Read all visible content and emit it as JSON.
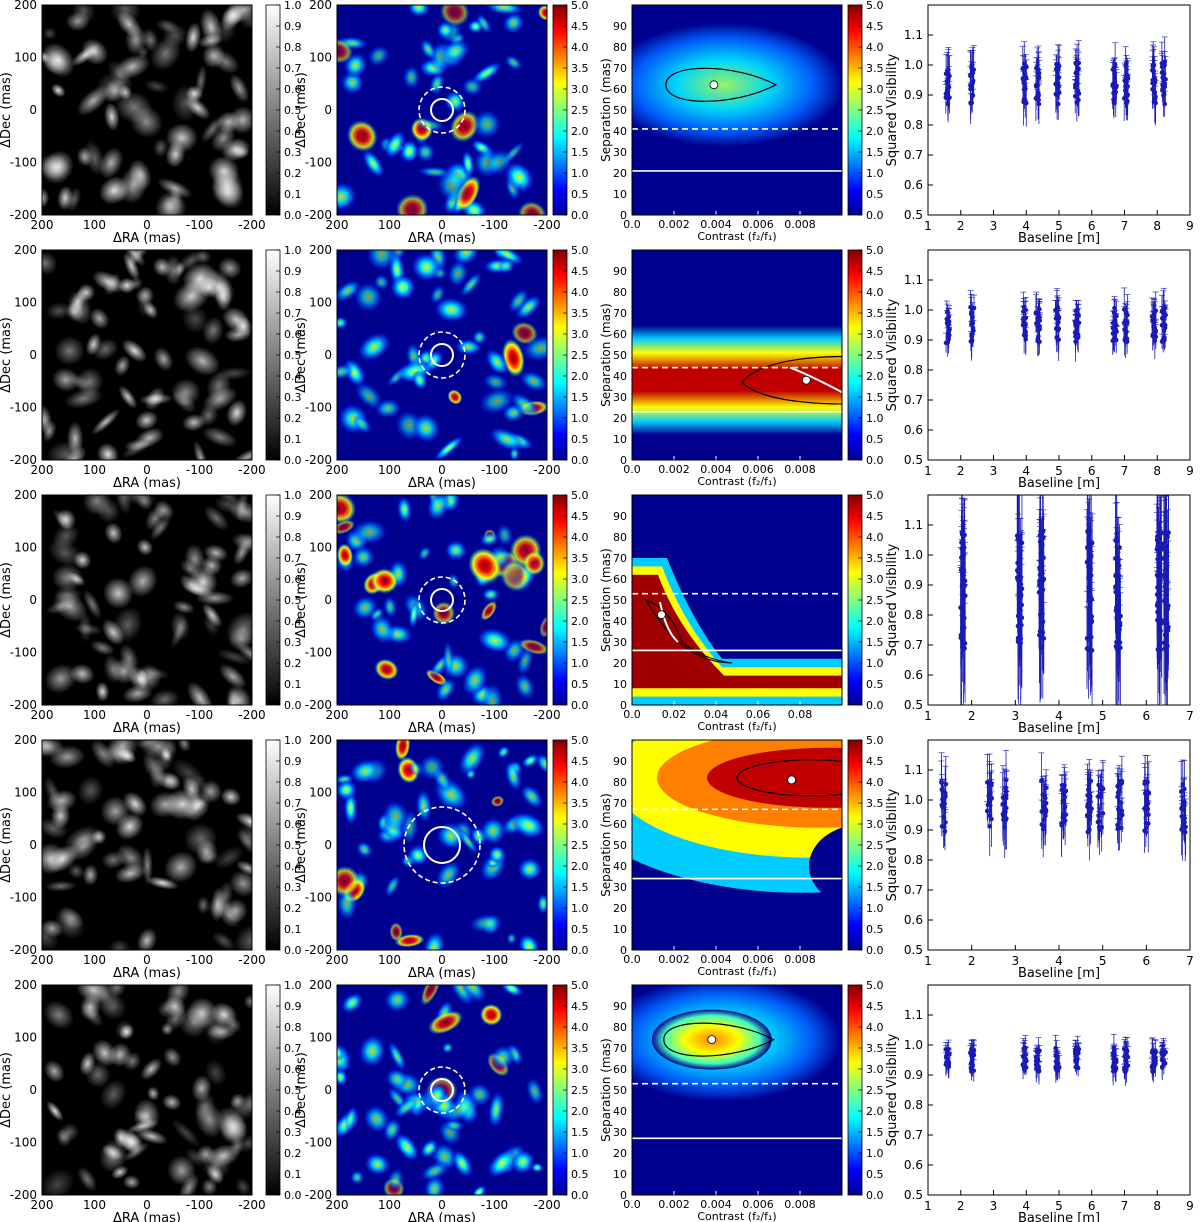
{
  "colors": {
    "viridis_low": "#00008f",
    "hot": "#800000",
    "points": "#1a1ab4",
    "white": "#ffffff",
    "black": "#000000"
  },
  "chart_data": [
    {
      "type": "heatmap",
      "row": 1,
      "panels": [
        {
          "kind": "image-gray",
          "xlabel": "ΔRA (mas)",
          "ylabel": "ΔDec (mas)",
          "xlim": [
            200,
            -200
          ],
          "ylim": [
            -200,
            200
          ],
          "xticks": [
            "200",
            "100",
            "0",
            "-100",
            "-200"
          ],
          "yticks": [
            "200",
            "100",
            "0",
            "-100",
            "-200"
          ],
          "colorbar_ticks": [
            "1.0",
            "0.9",
            "0.8",
            "0.7",
            "0.6",
            "0.5",
            "0.4",
            "0.3",
            "0.2",
            "0.1",
            "0.0"
          ]
        },
        {
          "kind": "image-jet",
          "xlabel": "ΔRA (mas)",
          "ylabel": "ΔDec (mas)",
          "xlim": [
            200,
            -200
          ],
          "ylim": [
            -200,
            200
          ],
          "xticks": [
            "200",
            "100",
            "0",
            "-100",
            "-200"
          ],
          "yticks": [
            "200",
            "100",
            "0",
            "-100",
            "-200"
          ],
          "colorbar_ticks": [
            "5.0",
            "4.5",
            "4.0",
            "3.5",
            "3.0",
            "2.5",
            "2.0",
            "1.5",
            "1.0",
            "0.5",
            "0.0"
          ]
        },
        {
          "kind": "contrast-separation",
          "xlabel": "Contrast (f₂/f₁)",
          "ylabel": "Separation (mas)",
          "xlim": [
            0,
            0.01
          ],
          "ylim": [
            0,
            100
          ],
          "xticks": [
            "0.0",
            "0.002",
            "0.004",
            "0.006",
            "0.008"
          ],
          "yticks": [
            "90",
            "80",
            "70",
            "60",
            "50",
            "40",
            "30",
            "20",
            "10",
            "0"
          ],
          "colorbar_ticks": [
            "5.0",
            "4.5",
            "4.0",
            "3.5",
            "3.0",
            "2.5",
            "2.0",
            "1.5",
            "1.0",
            "0.5",
            "0.0"
          ],
          "best_fit": [
            0.0039,
            62
          ],
          "lines": {
            "solid": 21,
            "dashed": 41
          }
        },
        {
          "kind": "scatter",
          "xlabel": "Baseline [m]",
          "ylabel": "Squared Visibility",
          "xlim": [
            1,
            9
          ],
          "ylim": [
            0.5,
            1.2
          ],
          "xticks": [
            "1",
            "2",
            "3",
            "4",
            "5",
            "6",
            "7",
            "8",
            "9"
          ],
          "yticks": [
            "1.1",
            "1.0",
            "0.9",
            "0.8",
            "0.7",
            "0.6",
            "0.5"
          ],
          "baselines": [
            1.6,
            2.35,
            3.95,
            4.35,
            4.95,
            5.55,
            6.7,
            7.05,
            7.9,
            8.2
          ],
          "vis_center": 0.94,
          "spread": 0.07
        }
      ]
    },
    {
      "type": "heatmap",
      "row": 2,
      "panels": [
        {
          "kind": "image-gray",
          "xlabel": "ΔRA (mas)",
          "ylabel": "ΔDec (mas)",
          "xticks": [
            "200",
            "100",
            "0",
            "-100",
            "-200"
          ],
          "yticks": [
            "200",
            "100",
            "0",
            "-100",
            "-200"
          ],
          "colorbar_ticks": [
            "1.0",
            "0.9",
            "0.8",
            "0.7",
            "0.6",
            "0.5",
            "0.4",
            "0.3",
            "0.2",
            "0.1",
            "0.0"
          ]
        },
        {
          "kind": "image-jet",
          "xlabel": "ΔRA (mas)",
          "ylabel": "ΔDec (mas)",
          "xticks": [
            "200",
            "100",
            "0",
            "-100",
            "-200"
          ],
          "yticks": [
            "200",
            "100",
            "0",
            "-100",
            "-200"
          ],
          "colorbar_ticks": [
            "5.0",
            "4.5",
            "4.0",
            "3.5",
            "3.0",
            "2.5",
            "2.0",
            "1.5",
            "1.0",
            "0.5",
            "0.0"
          ]
        },
        {
          "kind": "contrast-separation",
          "xlabel": "Contrast (f₂/f₁)",
          "ylabel": "Separation (mas)",
          "xlim": [
            0,
            0.01
          ],
          "ylim": [
            0,
            100
          ],
          "xticks": [
            "0.0",
            "0.002",
            "0.004",
            "0.006",
            "0.008"
          ],
          "yticks": [
            "90",
            "80",
            "70",
            "60",
            "50",
            "40",
            "30",
            "20",
            "10",
            "0"
          ],
          "colorbar_ticks": [
            "5.0",
            "4.5",
            "4.0",
            "3.5",
            "3.0",
            "2.5",
            "2.0",
            "1.5",
            "1.0",
            "0.5",
            "0.0"
          ],
          "best_fit": [
            0.0083,
            38
          ],
          "lines": {
            "solid": 23,
            "dashed": 44
          }
        },
        {
          "kind": "scatter",
          "xlabel": "Baseline [m]",
          "ylabel": "Squared Visibility",
          "xlim": [
            1,
            9
          ],
          "ylim": [
            0.5,
            1.2
          ],
          "xticks": [
            "1",
            "2",
            "3",
            "4",
            "5",
            "6",
            "7",
            "8",
            "9"
          ],
          "yticks": [
            "1.1",
            "1.0",
            "0.9",
            "0.8",
            "0.7",
            "0.6",
            "0.5"
          ],
          "baselines": [
            1.6,
            2.35,
            3.95,
            4.35,
            4.95,
            5.55,
            6.7,
            7.05,
            7.9,
            8.2
          ],
          "vis_center": 0.95,
          "spread": 0.06
        }
      ]
    },
    {
      "type": "heatmap",
      "row": 3,
      "panels": [
        {
          "kind": "image-gray",
          "xlabel": "ΔRA (mas)",
          "ylabel": "ΔDec (mas)",
          "xticks": [
            "200",
            "100",
            "0",
            "-100",
            "-200"
          ],
          "yticks": [
            "200",
            "100",
            "0",
            "-100",
            "-200"
          ],
          "colorbar_ticks": [
            "1.0",
            "0.9",
            "0.8",
            "0.7",
            "0.6",
            "0.5",
            "0.4",
            "0.3",
            "0.2",
            "0.1",
            "0.0"
          ]
        },
        {
          "kind": "image-jet",
          "xlabel": "ΔRA (mas)",
          "ylabel": "ΔDec (mas)",
          "xticks": [
            "200",
            "100",
            "0",
            "-100",
            "-200"
          ],
          "yticks": [
            "200",
            "100",
            "0",
            "-100",
            "-200"
          ],
          "colorbar_ticks": [
            "5.0",
            "4.5",
            "4.0",
            "3.5",
            "3.0",
            "2.5",
            "2.0",
            "1.5",
            "1.0",
            "0.5",
            "0.0"
          ]
        },
        {
          "kind": "contrast-separation",
          "xlabel": "Contrast (f₂/f₁)",
          "ylabel": "Separation (mas)",
          "xlim": [
            0,
            0.1
          ],
          "ylim": [
            0,
            100
          ],
          "xticks": [
            "0.0",
            "0.02",
            "0.04",
            "0.06",
            "0.08"
          ],
          "yticks": [
            "90",
            "80",
            "70",
            "60",
            "50",
            "40",
            "30",
            "20",
            "10",
            "0"
          ],
          "colorbar_ticks": [
            "5.0",
            "4.5",
            "4.0",
            "3.5",
            "3.0",
            "2.5",
            "2.0",
            "1.5",
            "1.0",
            "0.5",
            "0.0"
          ],
          "best_fit": [
            0.014,
            43
          ],
          "lines": {
            "solid": 26,
            "dashed": 53
          }
        },
        {
          "kind": "scatter",
          "xlabel": "Baseline [m]",
          "ylabel": "Squared Visibility",
          "xlim": [
            1,
            7
          ],
          "ylim": [
            0.5,
            1.2
          ],
          "xticks": [
            "1",
            "2",
            "3",
            "4",
            "5",
            "6",
            "7"
          ],
          "yticks": [
            "1.1",
            "1.0",
            "0.9",
            "0.8",
            "0.7",
            "0.6",
            "0.5"
          ],
          "baselines": [
            1.8,
            3.1,
            3.6,
            4.7,
            5.35,
            6.3,
            6.45
          ],
          "vis_center": 0.88,
          "spread": 0.2
        }
      ]
    },
    {
      "type": "heatmap",
      "row": 4,
      "panels": [
        {
          "kind": "image-gray",
          "xlabel": "ΔRA (mas)",
          "ylabel": "ΔDec (mas)",
          "xticks": [
            "200",
            "100",
            "0",
            "-100",
            "-200"
          ],
          "yticks": [
            "200",
            "100",
            "0",
            "-100",
            "-200"
          ],
          "colorbar_ticks": [
            "1.0",
            "0.9",
            "0.8",
            "0.7",
            "0.6",
            "0.5",
            "0.4",
            "0.3",
            "0.2",
            "0.1",
            "0.0"
          ]
        },
        {
          "kind": "image-jet",
          "xlabel": "ΔRA (mas)",
          "ylabel": "ΔDec (mas)",
          "xticks": [
            "200",
            "100",
            "0",
            "-100",
            "-200"
          ],
          "yticks": [
            "200",
            "100",
            "0",
            "-100",
            "-200"
          ],
          "colorbar_ticks": [
            "5.0",
            "4.5",
            "4.0",
            "3.5",
            "3.0",
            "2.5",
            "2.0",
            "1.5",
            "1.0",
            "0.5",
            "0.0"
          ]
        },
        {
          "kind": "contrast-separation",
          "xlabel": "Contrast (f₂/f₁)",
          "ylabel": "Separation (mas)",
          "xlim": [
            0,
            0.01
          ],
          "ylim": [
            0,
            100
          ],
          "xticks": [
            "0.0",
            "0.002",
            "0.004",
            "0.006",
            "0.008"
          ],
          "yticks": [
            "90",
            "80",
            "70",
            "60",
            "50",
            "40",
            "30",
            "20",
            "10",
            "0"
          ],
          "colorbar_ticks": [
            "5.0",
            "4.5",
            "4.0",
            "3.5",
            "3.0",
            "2.5",
            "2.0",
            "1.5",
            "1.0",
            "0.5",
            "0.0"
          ],
          "best_fit": [
            0.0076,
            81
          ],
          "lines": {
            "solid": 34,
            "dashed": 67
          }
        },
        {
          "kind": "scatter",
          "xlabel": "Baseline [m]",
          "ylabel": "Squared Visibility",
          "xlim": [
            1,
            7
          ],
          "ylim": [
            0.5,
            1.2
          ],
          "xticks": [
            "1",
            "2",
            "3",
            "4",
            "5",
            "6",
            "7"
          ],
          "yticks": [
            "1.1",
            "1.0",
            "0.9",
            "0.8",
            "0.7",
            "0.6",
            "0.5"
          ],
          "baselines": [
            1.35,
            2.4,
            2.75,
            3.65,
            4.1,
            4.7,
            4.95,
            5.4,
            6.0,
            6.85
          ],
          "vis_center": 0.98,
          "spread": 0.09
        }
      ]
    },
    {
      "type": "heatmap",
      "row": 5,
      "panels": [
        {
          "kind": "image-gray",
          "xlabel": "ΔRA (mas)",
          "ylabel": "ΔDec (mas)",
          "xticks": [
            "200",
            "100",
            "0",
            "-100",
            "-200"
          ],
          "yticks": [
            "200",
            "100",
            "0",
            "-100",
            "-200"
          ],
          "colorbar_ticks": [
            "1.0",
            "0.9",
            "0.8",
            "0.7",
            "0.6",
            "0.5",
            "0.4",
            "0.3",
            "0.2",
            "0.1",
            "0.0"
          ]
        },
        {
          "kind": "image-jet",
          "xlabel": "ΔRA (mas)",
          "ylabel": "ΔDec (mas)",
          "xticks": [
            "200",
            "100",
            "0",
            "-100",
            "-200"
          ],
          "yticks": [
            "200",
            "100",
            "0",
            "-100",
            "-200"
          ],
          "colorbar_ticks": [
            "5.0",
            "4.5",
            "4.0",
            "3.5",
            "3.0",
            "2.5",
            "2.0",
            "1.5",
            "1.0",
            "0.5",
            "0.0"
          ]
        },
        {
          "kind": "contrast-separation",
          "xlabel": "Contrast (f₂/f₁)",
          "ylabel": "Separation (mas)",
          "xlim": [
            0,
            0.01
          ],
          "ylim": [
            0,
            100
          ],
          "xticks": [
            "0.0",
            "0.002",
            "0.004",
            "0.006",
            "0.008"
          ],
          "yticks": [
            "90",
            "80",
            "70",
            "60",
            "50",
            "40",
            "30",
            "20",
            "10",
            "0"
          ],
          "colorbar_ticks": [
            "5.0",
            "4.5",
            "4.0",
            "3.5",
            "3.0",
            "2.5",
            "2.0",
            "1.5",
            "1.0",
            "0.5",
            "0.0"
          ],
          "best_fit": [
            0.0038,
            74
          ],
          "lines": {
            "solid": 27,
            "dashed": 53
          }
        },
        {
          "kind": "scatter",
          "xlabel": "Baseline [m]",
          "ylabel": "Squared Visibility",
          "xlim": [
            1,
            9
          ],
          "ylim": [
            0.5,
            1.2
          ],
          "xticks": [
            "1",
            "2",
            "3",
            "4",
            "5",
            "6",
            "7",
            "8",
            "9"
          ],
          "yticks": [
            "1.1",
            "1.0",
            "0.9",
            "0.8",
            "0.7",
            "0.6",
            "0.5"
          ],
          "baselines": [
            1.6,
            2.35,
            3.95,
            4.35,
            4.95,
            5.55,
            6.7,
            7.05,
            7.9,
            8.2
          ],
          "vis_center": 0.95,
          "spread": 0.04
        }
      ]
    }
  ]
}
